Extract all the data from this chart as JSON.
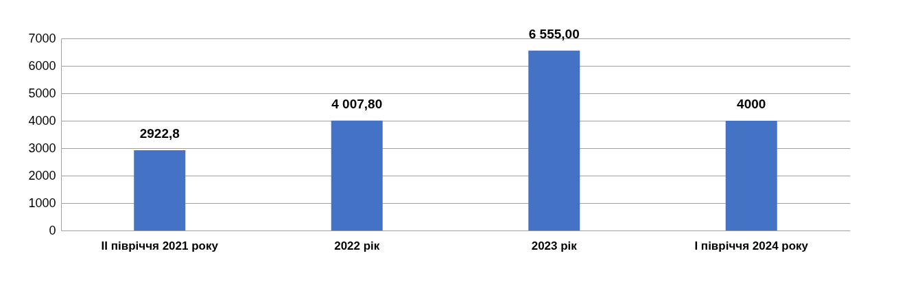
{
  "chart_data": {
    "type": "bar",
    "categories": [
      "II півріччя 2021 року",
      "2022 рік",
      "2023 рік",
      "I півріччя 2024 року"
    ],
    "values": [
      2922.8,
      4007.8,
      6555,
      4000
    ],
    "value_labels": [
      "2922,8",
      "4 007,80",
      "6 555,00",
      "4000"
    ],
    "color": "#4472c4",
    "ylim": [
      0,
      7000
    ],
    "yticks": [
      0,
      1000,
      2000,
      3000,
      4000,
      5000,
      6000,
      7000
    ],
    "grid": true
  }
}
